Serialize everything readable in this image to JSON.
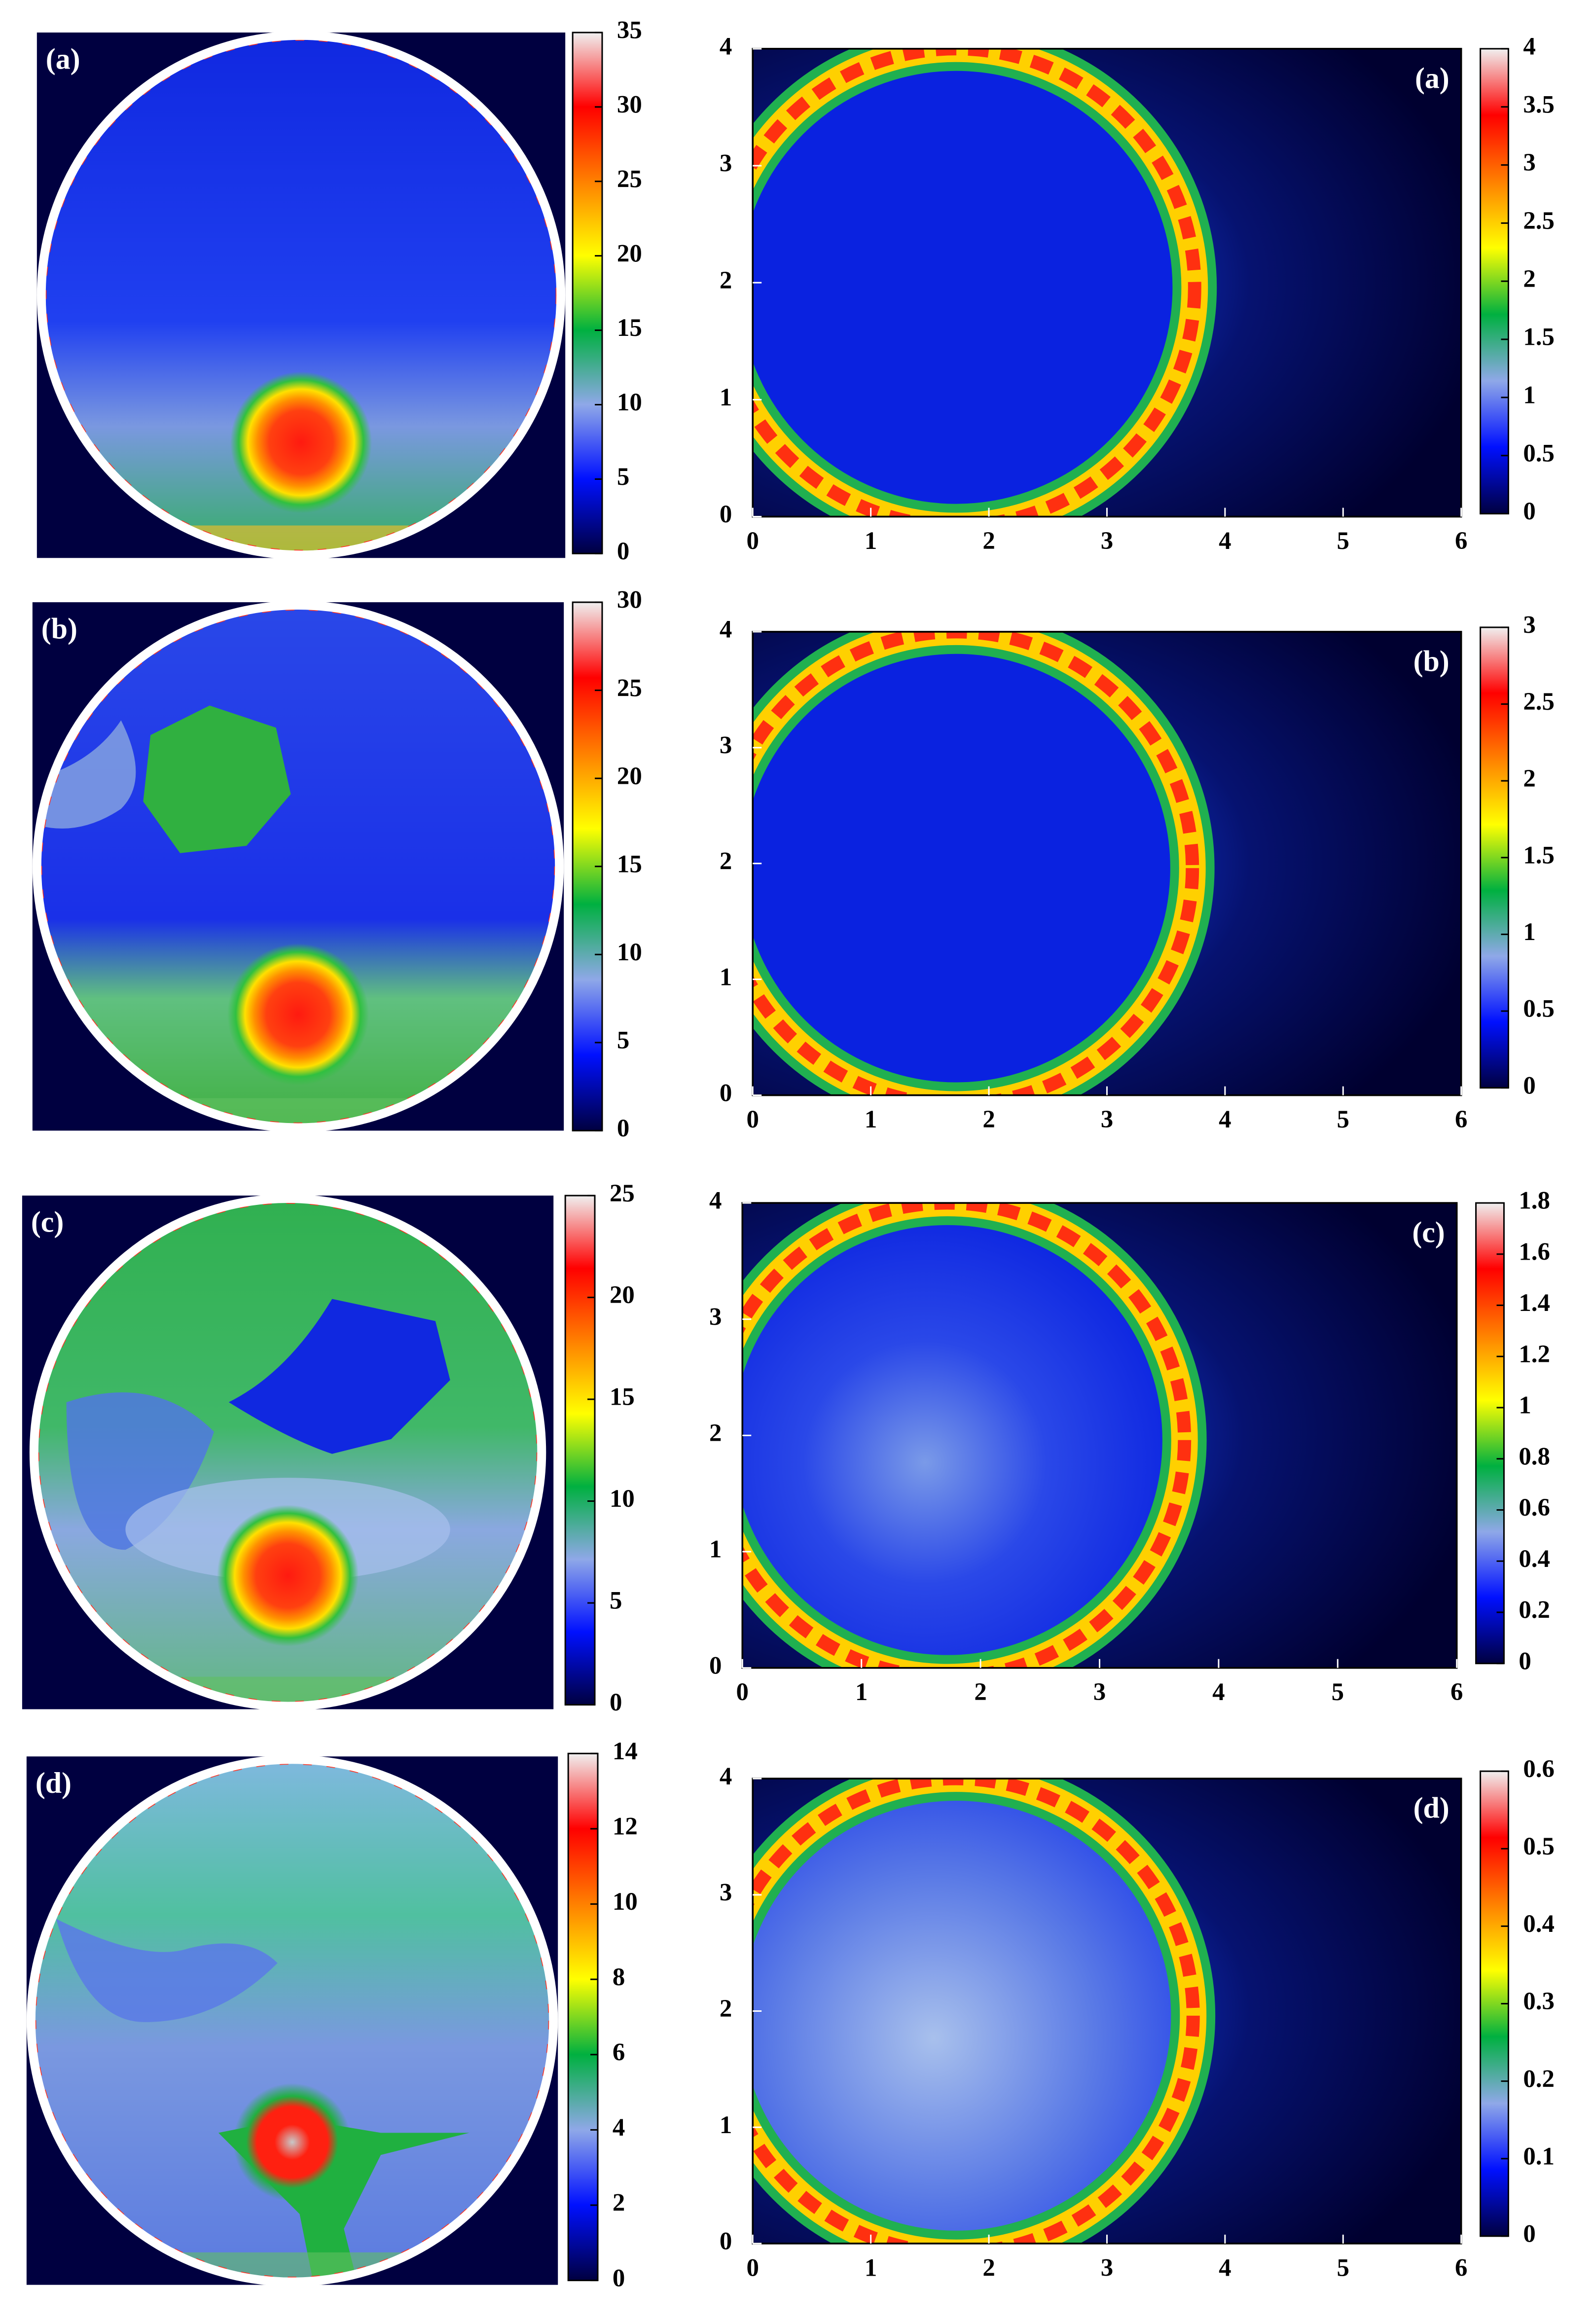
{
  "chart_data": [
    {
      "type": "heatmap",
      "label": "(a)",
      "clim": [
        0,
        35
      ],
      "colorbar_ticks": [
        0,
        5,
        10,
        15,
        20,
        25,
        30,
        35
      ],
      "colormap": [
        "#000040",
        "#0010ff",
        "#8fa8e8",
        "#00b040",
        "#ffff00",
        "#ff8000",
        "#ff0000",
        "#f0f0f0"
      ]
    },
    {
      "type": "heatmap",
      "label": "(a)",
      "xlim": [
        0,
        6
      ],
      "xticks": [
        0,
        1,
        2,
        3,
        4,
        5,
        6
      ],
      "ylim": [
        0,
        4
      ],
      "yticks": [
        0,
        1,
        2,
        3,
        4
      ],
      "clim": [
        0,
        4
      ],
      "colorbar_ticks": [
        0,
        0.5,
        1,
        1.5,
        2,
        2.5,
        3,
        3.5,
        4
      ],
      "colormap": [
        "#000040",
        "#0010ff",
        "#8fa8e8",
        "#00b040",
        "#ffff00",
        "#ff8000",
        "#ff0000",
        "#f0f0f0"
      ]
    },
    {
      "type": "heatmap",
      "label": "(b)",
      "clim": [
        0,
        30
      ],
      "colorbar_ticks": [
        0,
        5,
        10,
        15,
        20,
        25,
        30
      ],
      "colormap": [
        "#000040",
        "#0010ff",
        "#8fa8e8",
        "#00b040",
        "#ffff00",
        "#ff8000",
        "#ff0000",
        "#f0f0f0"
      ]
    },
    {
      "type": "heatmap",
      "label": "(b)",
      "xlim": [
        0,
        6
      ],
      "xticks": [
        0,
        1,
        2,
        3,
        4,
        5,
        6
      ],
      "ylim": [
        0,
        4
      ],
      "yticks": [
        0,
        1,
        2,
        3,
        4
      ],
      "clim": [
        0,
        3
      ],
      "colorbar_ticks": [
        0,
        0.5,
        1,
        1.5,
        2,
        2.5,
        3
      ],
      "colormap": [
        "#000040",
        "#0010ff",
        "#8fa8e8",
        "#00b040",
        "#ffff00",
        "#ff8000",
        "#ff0000",
        "#f0f0f0"
      ]
    },
    {
      "type": "heatmap",
      "label": "(c)",
      "clim": [
        0,
        25
      ],
      "colorbar_ticks": [
        0,
        5,
        10,
        15,
        20,
        25
      ],
      "colormap": [
        "#000040",
        "#0010ff",
        "#8fa8e8",
        "#00b040",
        "#ffff00",
        "#ff8000",
        "#ff0000",
        "#f0f0f0"
      ]
    },
    {
      "type": "heatmap",
      "label": "(c)",
      "xlim": [
        0,
        6
      ],
      "xticks": [
        0,
        1,
        2,
        3,
        4,
        5,
        6
      ],
      "ylim": [
        0,
        4
      ],
      "yticks": [
        0,
        1,
        2,
        3,
        4
      ],
      "clim": [
        0,
        1.8
      ],
      "colorbar_ticks": [
        0,
        0.2,
        0.4,
        0.6,
        0.8,
        1,
        1.2,
        1.4,
        1.6,
        1.8
      ],
      "colormap": [
        "#000040",
        "#0010ff",
        "#8fa8e8",
        "#00b040",
        "#ffff00",
        "#ff8000",
        "#ff0000",
        "#f0f0f0"
      ]
    },
    {
      "type": "heatmap",
      "label": "(d)",
      "clim": [
        0,
        14
      ],
      "colorbar_ticks": [
        0,
        2,
        4,
        6,
        8,
        10,
        12,
        14
      ],
      "colormap": [
        "#000040",
        "#0010ff",
        "#8fa8e8",
        "#00b040",
        "#ffff00",
        "#ff8000",
        "#ff0000",
        "#f0f0f0"
      ]
    },
    {
      "type": "heatmap",
      "label": "(d)",
      "xlim": [
        0,
        6
      ],
      "xticks": [
        0,
        1,
        2,
        3,
        4,
        5,
        6
      ],
      "ylim": [
        0,
        4
      ],
      "yticks": [
        0,
        1,
        2,
        3,
        4
      ],
      "clim": [
        0,
        0.6
      ],
      "colorbar_ticks": [
        0,
        0.1,
        0.2,
        0.3,
        0.4,
        0.5,
        0.6
      ],
      "colormap": [
        "#000040",
        "#0010ff",
        "#8fa8e8",
        "#00b040",
        "#ffff00",
        "#ff8000",
        "#ff0000",
        "#f0f0f0"
      ]
    }
  ]
}
